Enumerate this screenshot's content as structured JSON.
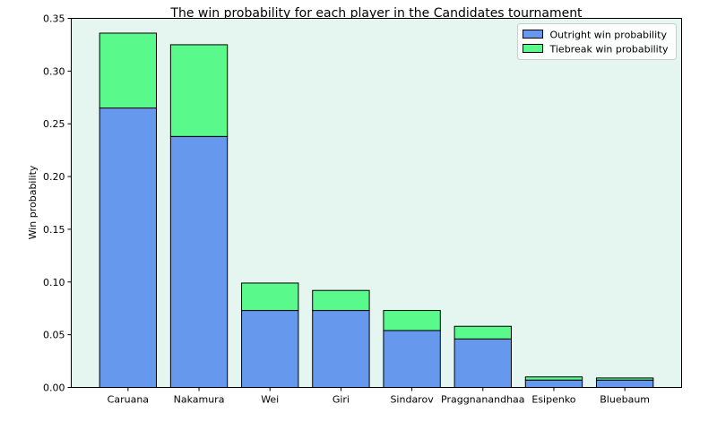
{
  "chart_data": {
    "type": "bar",
    "stacked": true,
    "title": "The win probability for each player in the Candidates tournament",
    "xlabel": "",
    "ylabel": "Win probability",
    "ylim": [
      0,
      0.35
    ],
    "yticks": [
      "0.00",
      "0.05",
      "0.10",
      "0.15",
      "0.20",
      "0.25",
      "0.30",
      "0.35"
    ],
    "grid": false,
    "legend_position": "top-right",
    "background_color": "#e5f5ef",
    "categories": [
      "Caruana",
      "Nakamura",
      "Wei",
      "Giri",
      "Sindarov",
      "Praggnanandhaa",
      "Esipenko",
      "Bluebaum"
    ],
    "series": [
      {
        "name": "Outright win probability",
        "color": "#6699ee",
        "values": [
          0.265,
          0.238,
          0.073,
          0.073,
          0.054,
          0.046,
          0.007,
          0.007
        ]
      },
      {
        "name": "Tiebreak win probability",
        "color": "#59f98c",
        "values": [
          0.071,
          0.087,
          0.026,
          0.019,
          0.019,
          0.012,
          0.003,
          0.002
        ]
      }
    ]
  }
}
